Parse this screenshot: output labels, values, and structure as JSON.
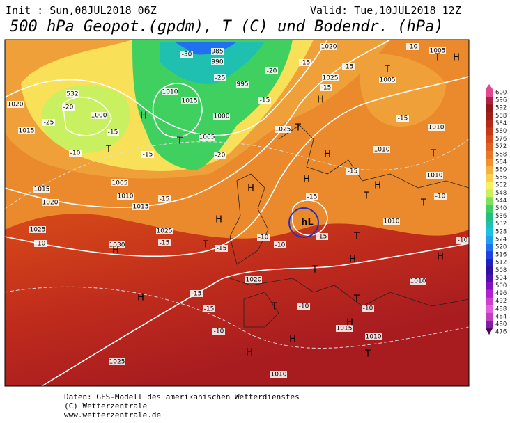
{
  "header": {
    "init": "Init : Sun,08JUL2018 06Z",
    "valid": "Valid: Tue,10JUL2018 12Z",
    "title": "500 hPa Geopot.(gpdm), T (C) und Bodendr. (hPa)"
  },
  "colorbar": {
    "ticks": [
      600,
      596,
      592,
      588,
      584,
      580,
      576,
      572,
      568,
      564,
      560,
      556,
      552,
      548,
      544,
      540,
      536,
      532,
      528,
      524,
      520,
      516,
      512,
      508,
      504,
      500,
      496,
      492,
      488,
      484,
      480,
      476
    ],
    "colors": [
      "#e04890",
      "#b02040",
      "#901818",
      "#a02018",
      "#b82818",
      "#c83818",
      "#d84c18",
      "#e06020",
      "#e87828",
      "#f09030",
      "#f8b040",
      "#f8d050",
      "#f8f060",
      "#c8f060",
      "#80e060",
      "#40d060",
      "#20c080",
      "#20c0b0",
      "#20c0e0",
      "#20a0f0",
      "#2070f0",
      "#2040e0",
      "#2020c0",
      "#3010a0",
      "#5010b0",
      "#8010c0",
      "#b020d0",
      "#d040d0",
      "#e060e0",
      "#c040c0",
      "#8020a0",
      "#500060"
    ]
  },
  "map": {
    "labels": [
      "985",
      "990",
      "-30",
      "-25",
      "995",
      "1010",
      "1015",
      "1000",
      "1005",
      "T",
      "-20",
      "-20",
      "1020",
      "1015",
      "1000",
      "532",
      "-20",
      "-25",
      "H",
      "T",
      "-10",
      "-15",
      "-15",
      "1015",
      "1020",
      "1005",
      "1010",
      "1015",
      "-15",
      "1025",
      "-10",
      "1030",
      "H",
      "1025",
      "-15",
      "H",
      "T",
      "-15",
      "H",
      "-15",
      "-15",
      "-10",
      "1025",
      "H",
      "H",
      "1010",
      "T",
      "1010",
      "1015",
      "H",
      "-10",
      "T",
      "-10",
      "T",
      "1020",
      "-10",
      "-10",
      "H",
      "H",
      "H",
      "-15",
      "hL",
      "-15",
      "T",
      "H",
      "T",
      "1010",
      "1010",
      "H",
      "T",
      "T",
      "1010",
      "-10",
      "-10",
      "H",
      "T",
      "1010",
      "-15",
      "1010",
      "-15",
      "H",
      "1025",
      "T",
      "-15",
      "1020",
      "1025",
      "-15",
      "-10",
      "1005",
      "T",
      "H",
      "T",
      "1005",
      "-15",
      "-15"
    ]
  },
  "footer": {
    "line1": "Daten: GFS-Modell des amerikanischen Wetterdienstes",
    "line2": "(C) Wetterzentrale",
    "line3": "www.wetterzentrale.de"
  }
}
